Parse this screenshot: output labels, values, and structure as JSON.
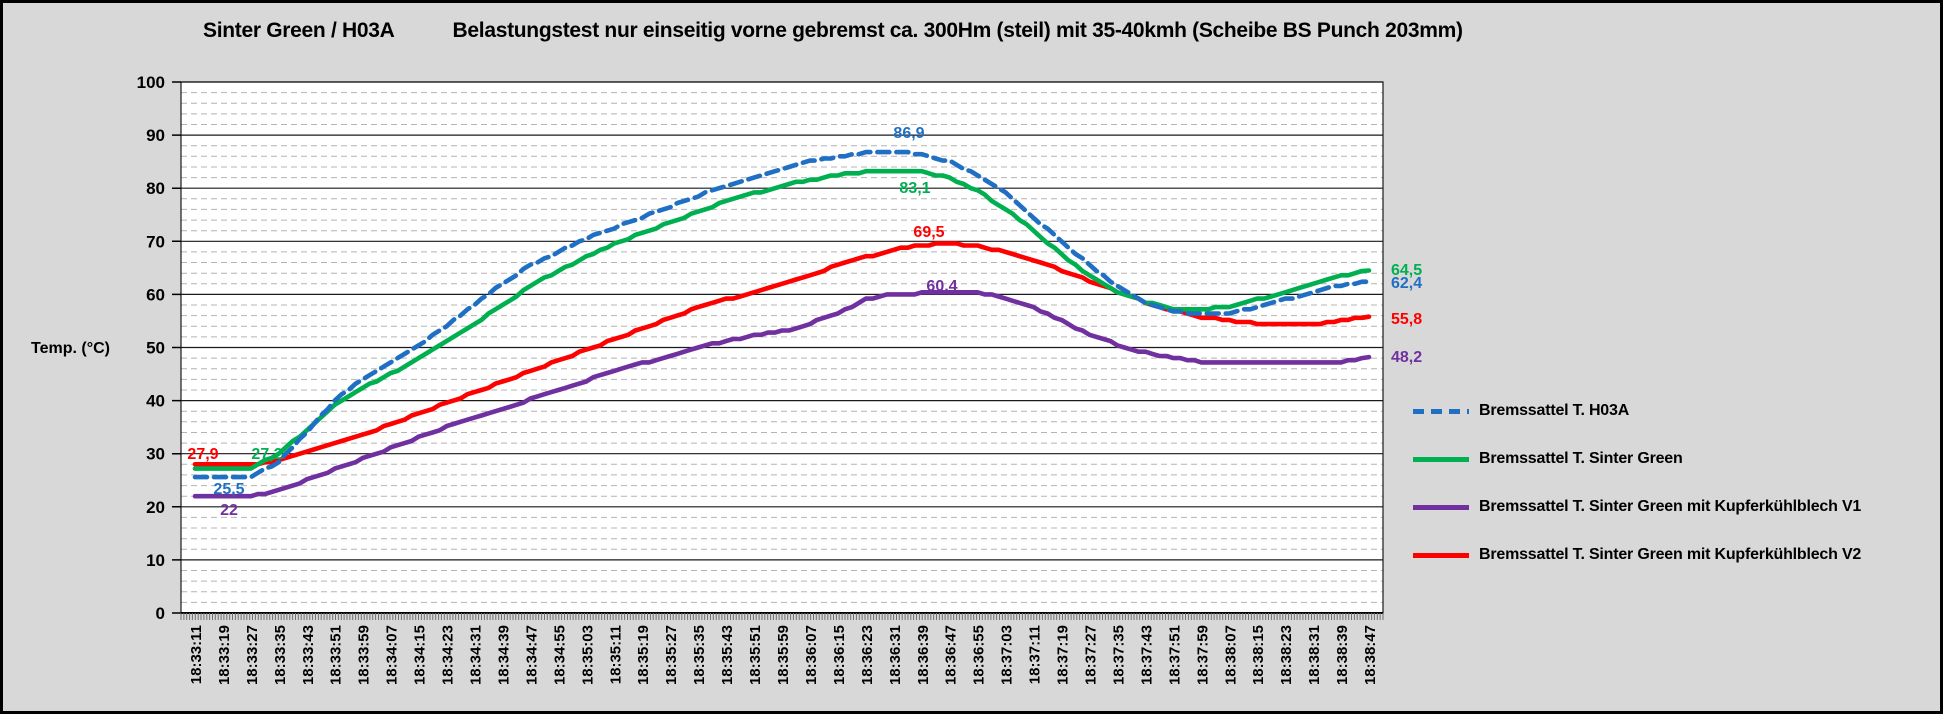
{
  "title": {
    "part1": "Sinter Green / H03A",
    "part2": "Belastungstest nur einseitig vorne gebremst ca. 300Hm (steil) mit 35-40kmh (Scheibe BS Punch 203mm)"
  },
  "chart_data": {
    "type": "line",
    "title": "Sinter Green / H03A — Belastungstest nur einseitig vorne gebremst ca. 300Hm (steil) mit 35-40kmh (Scheibe BS Punch 203mm)",
    "ylabel": "Temp. (°C)",
    "ylim": [
      0,
      100
    ],
    "y_major_step": 10,
    "y_minor_step": 2,
    "grid": "major solid black, minor dashed gray",
    "legend_position": "right",
    "y_tick_labels": [
      "0",
      "10",
      "20",
      "30",
      "40",
      "50",
      "60",
      "70",
      "80",
      "90",
      "100"
    ],
    "x": [
      "18:33:11",
      "18:33:19",
      "18:33:27",
      "18:33:35",
      "18:33:43",
      "18:33:51",
      "18:33:59",
      "18:34:07",
      "18:34:15",
      "18:34:23",
      "18:34:31",
      "18:34:39",
      "18:34:47",
      "18:34:55",
      "18:35:03",
      "18:35:11",
      "18:35:19",
      "18:35:27",
      "18:35:35",
      "18:35:43",
      "18:35:51",
      "18:35:59",
      "18:36:07",
      "18:36:15",
      "18:36:23",
      "18:36:31",
      "18:36:39",
      "18:36:47",
      "18:36:55",
      "18:37:03",
      "18:37:11",
      "18:37:19",
      "18:37:27",
      "18:37:35",
      "18:37:43",
      "18:37:51",
      "18:37:59",
      "18:38:07",
      "18:38:15",
      "18:38:23",
      "18:38:31",
      "18:38:39",
      "18:38:47"
    ],
    "series": [
      {
        "id": "h03a",
        "name": "Bremssattel T. H03A",
        "color": "#1f6fc5",
        "dashed": true,
        "labels": {
          "start": "25,5",
          "peak": "86,9",
          "end": "62,4"
        },
        "values": [
          25.5,
          25.5,
          25.6,
          28.5,
          34,
          40,
          44,
          47,
          50.5,
          54,
          58,
          62,
          65.5,
          68,
          70.5,
          72.5,
          74.5,
          76.5,
          78.5,
          80.5,
          82,
          83.5,
          85,
          86,
          86.7,
          86.9,
          86.5,
          85,
          82.5,
          79,
          74.5,
          70,
          65.5,
          61.5,
          58.5,
          56.8,
          56.3,
          56.5,
          57.5,
          59,
          60.5,
          61.7,
          62.4
        ]
      },
      {
        "id": "sinter-green",
        "name": "Bremssattel T. Sinter Green",
        "color": "#00b050",
        "dashed": false,
        "labels": {
          "start": "27,2",
          "peak": "83,1",
          "end": "64,5"
        },
        "values": [
          27.2,
          27.2,
          27.3,
          30,
          34.5,
          39,
          42.5,
          45,
          48,
          51,
          54.5,
          58,
          61.5,
          64.5,
          67,
          69.5,
          71.5,
          73.5,
          75.5,
          77.5,
          79,
          80.5,
          81.5,
          82.5,
          83,
          83.1,
          83,
          82,
          79.5,
          76,
          72,
          67.5,
          63.5,
          60.5,
          58.5,
          57.3,
          57.2,
          57.8,
          59,
          60.5,
          62,
          63.5,
          64.5
        ]
      },
      {
        "id": "sinter-green-v1",
        "name": "Bremssattel T. Sinter Green mit Kupferkühlblech V1",
        "color": "#7030a0",
        "dashed": false,
        "labels": {
          "start": "22",
          "peak": "60,4",
          "end": "48,2"
        },
        "values": [
          22,
          22,
          22.1,
          23,
          25,
          27,
          29,
          31,
          33,
          35,
          36.8,
          38.5,
          40.2,
          42,
          43.8,
          45.5,
          47,
          48.5,
          50,
          51.2,
          52.2,
          53,
          54.5,
          56.5,
          59,
          60.1,
          60.2,
          60.3,
          60.4,
          59.3,
          57.5,
          55,
          52.5,
          50.5,
          49,
          48,
          47.4,
          47.1,
          47,
          47,
          47,
          47.4,
          48.2
        ]
      },
      {
        "id": "sinter-green-v2",
        "name": "Bremssattel T. Sinter Green mit Kupferkühlblech V2",
        "color": "#fe0000",
        "dashed": false,
        "labels": {
          "start": "27,9",
          "peak": "69,5",
          "end": "55,8"
        },
        "values": [
          27.9,
          27.9,
          27.9,
          28.8,
          30.5,
          32,
          33.5,
          35.5,
          37.5,
          39.5,
          41.5,
          43.5,
          45.5,
          47.5,
          49.5,
          51.5,
          53.5,
          55.5,
          57.5,
          59,
          60.5,
          62,
          63.5,
          65.5,
          67,
          68.5,
          69.3,
          69.5,
          69.2,
          68,
          66.5,
          64.5,
          62.5,
          60.5,
          58.5,
          57,
          55.8,
          55,
          54.5,
          54.3,
          54.4,
          55,
          55.8
        ]
      }
    ]
  }
}
